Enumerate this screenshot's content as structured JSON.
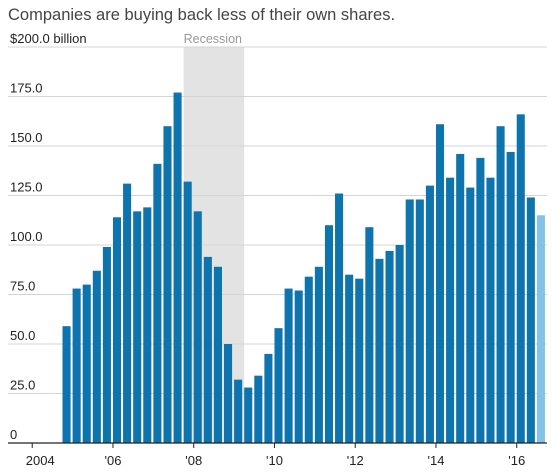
{
  "chart_data": {
    "type": "bar",
    "title": "Companies are buying back less of their own shares.",
    "x": [
      2004.75,
      2005,
      2005.25,
      2005.5,
      2005.75,
      2006,
      2006.25,
      2006.5,
      2006.75,
      2007,
      2007.25,
      2007.5,
      2007.75,
      2008,
      2008.25,
      2008.5,
      2008.75,
      2009,
      2009.25,
      2009.5,
      2009.75,
      2010,
      2010.25,
      2010.5,
      2010.75,
      2011,
      2011.25,
      2011.5,
      2011.75,
      2012,
      2012.25,
      2012.5,
      2012.75,
      2013,
      2013.25,
      2013.5,
      2013.75,
      2014,
      2014.25,
      2014.5,
      2014.75,
      2015,
      2015.25,
      2015.5,
      2015.75,
      2016,
      2016.25,
      2016.5
    ],
    "values": [
      59,
      78,
      80,
      87,
      99,
      114,
      131,
      117,
      119,
      141,
      160,
      177,
      132,
      117,
      94,
      89,
      50,
      32,
      28,
      34,
      45,
      58,
      78,
      77,
      84,
      89,
      110,
      126,
      85,
      83,
      109,
      93,
      97,
      100,
      123,
      123,
      130,
      161,
      134,
      146,
      129,
      144,
      134,
      160,
      147,
      166,
      124,
      115
    ],
    "color": "#0e74ad",
    "estimate_color": "#86c2e8",
    "estimate_from_index": 47,
    "xlim": [
      2003.4,
      2016.75
    ],
    "xticks": [
      {
        "value": 2004,
        "label": "2004"
      },
      {
        "value": 2006,
        "label": "'06"
      },
      {
        "value": 2008,
        "label": "'08"
      },
      {
        "value": 2010,
        "label": "'10"
      },
      {
        "value": 2012,
        "label": "'12"
      },
      {
        "value": 2014,
        "label": "'14"
      },
      {
        "value": 2016,
        "label": "'16"
      }
    ],
    "ylim": [
      0,
      200
    ],
    "yticks": [
      0,
      {
        "value": 25,
        "label": "25.0"
      },
      {
        "value": 50,
        "label": "50.0"
      },
      {
        "value": 75,
        "label": "75.0"
      },
      {
        "value": 100,
        "label": "100.0"
      },
      {
        "value": 125,
        "label": "125.0"
      },
      {
        "value": 150,
        "label": "150.0"
      },
      {
        "value": 175,
        "label": "175.0"
      },
      {
        "value": 200,
        "label": "$200.0 billion"
      }
    ],
    "grid": true,
    "recession": {
      "label": "Recession",
      "x": [
        2007.75,
        2009.25
      ]
    }
  }
}
